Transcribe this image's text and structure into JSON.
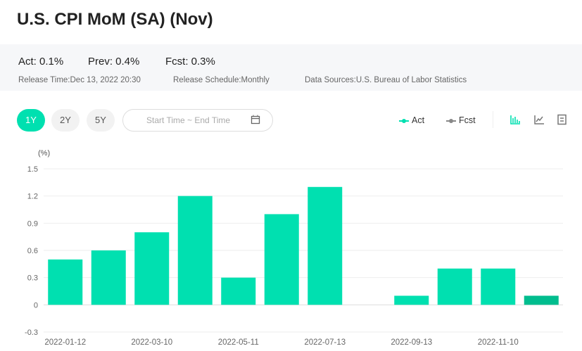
{
  "title": "U.S. CPI MoM (SA) (Nov)",
  "stats": {
    "act": "Act: 0.1%",
    "prev": "Prev: 0.4%",
    "fcst": "Fcst: 0.3%"
  },
  "meta": {
    "release_time": "Release Time:Dec 13, 2022 20:30",
    "schedule": "Release Schedule:Monthly",
    "source": "Data Sources:U.S. Bureau of Labor Statistics"
  },
  "ranges": [
    "1Y",
    "2Y",
    "5Y"
  ],
  "active_range": "1Y",
  "date_range_placeholder": "Start Time ~ End Time",
  "legend": {
    "act": "Act",
    "fcst": "Fcst"
  },
  "icons": [
    "calendar-icon",
    "bar-chart-icon",
    "line-chart-icon",
    "table-icon"
  ],
  "colors": {
    "act": "#00e0b0",
    "latest": "#00bd8e",
    "fcst": "#888888"
  },
  "chart_data": {
    "type": "bar",
    "ylabel": "(%)",
    "ylim": [
      -0.3,
      1.5
    ],
    "yticks": [
      "1.5",
      "1.2",
      "0.9",
      "0.6",
      "0.3",
      "0",
      "-0.3"
    ],
    "x_tick_labels": [
      "2022-01-12",
      "2022-03-10",
      "2022-05-11",
      "2022-07-13",
      "2022-09-13",
      "2022-11-10"
    ],
    "values": [
      0.5,
      0.6,
      0.8,
      1.2,
      0.3,
      1.0,
      1.3,
      0.0,
      0.1,
      0.4,
      0.4,
      0.1
    ],
    "grid": true,
    "legend": "top-right"
  }
}
